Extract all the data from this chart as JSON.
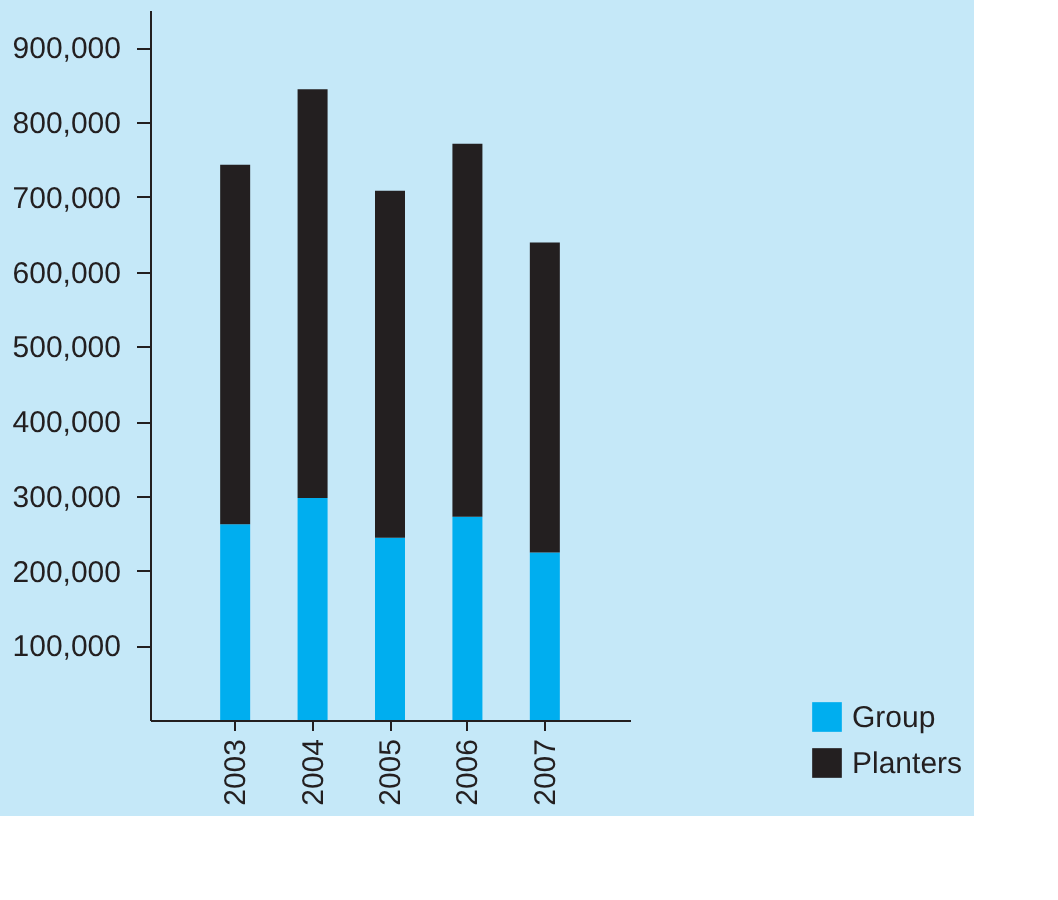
{
  "chart_data": {
    "type": "bar",
    "stacked": true,
    "categories": [
      "2003",
      "2004",
      "2005",
      "2006",
      "2007"
    ],
    "series": [
      {
        "name": "Group",
        "color": "#00aeef",
        "values": [
          262000,
          297000,
          244000,
          272000,
          224000
        ]
      },
      {
        "name": "Planters",
        "color": "#231f20",
        "values": [
          481000,
          547000,
          464000,
          499000,
          415000
        ]
      }
    ],
    "ylim": [
      0,
      950000
    ],
    "yticks": [
      {
        "value": 100000,
        "label": "100,000"
      },
      {
        "value": 200000,
        "label": "200,000"
      },
      {
        "value": 300000,
        "label": "300,000"
      },
      {
        "value": 400000,
        "label": "400,000"
      },
      {
        "value": 500000,
        "label": "500,000"
      },
      {
        "value": 600000,
        "label": "600,000"
      },
      {
        "value": 700000,
        "label": "700,000"
      },
      {
        "value": 800000,
        "label": "800,000"
      },
      {
        "value": 900000,
        "label": "900,000"
      }
    ],
    "grid": false,
    "legend": "bottom right"
  }
}
